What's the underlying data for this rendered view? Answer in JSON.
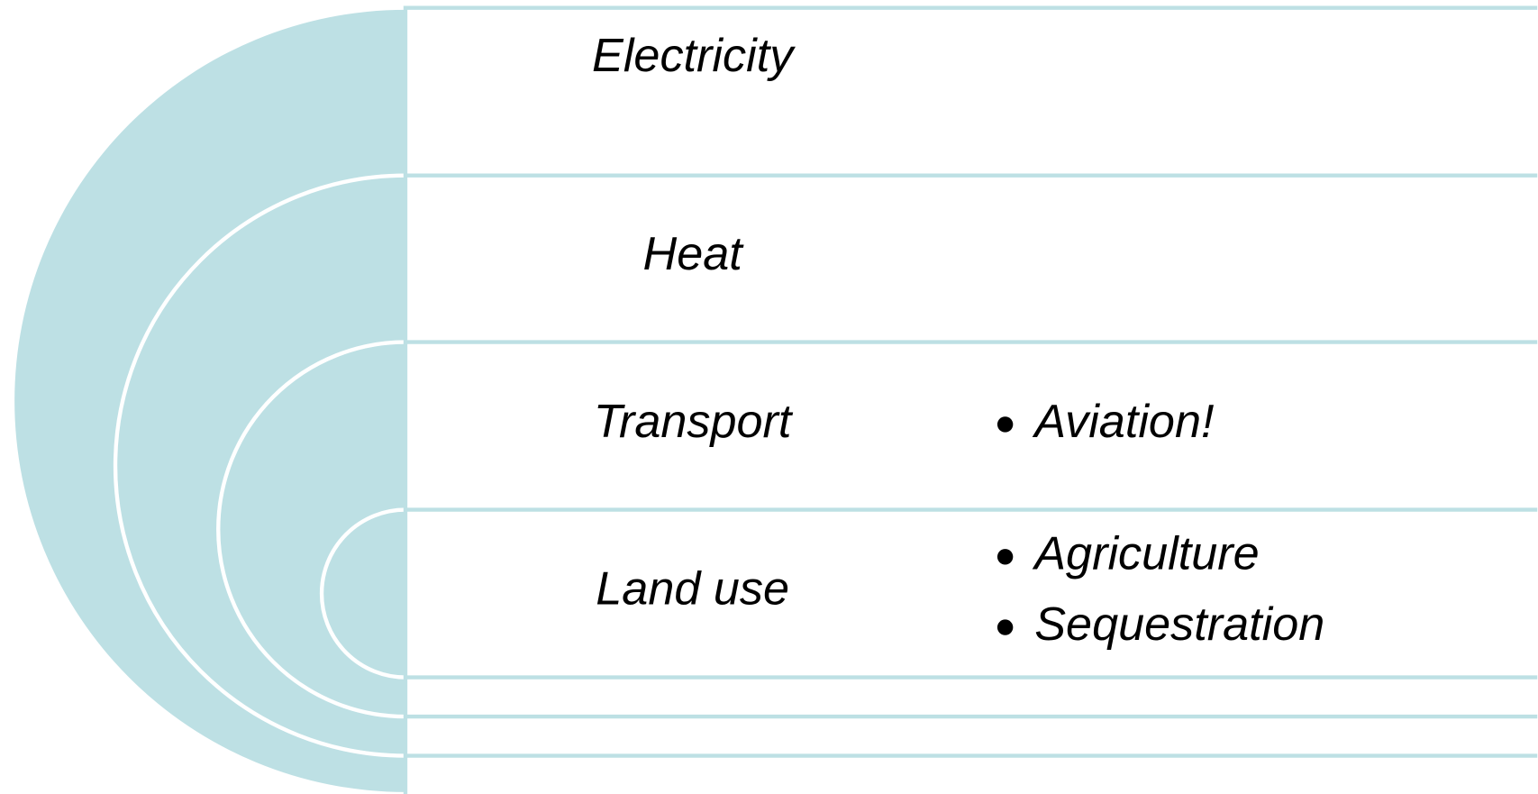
{
  "rows": [
    {
      "label": "Electricity",
      "bullets": []
    },
    {
      "label": "Heat",
      "bullets": []
    },
    {
      "label": "Transport",
      "bullets": [
        "Aviation!"
      ]
    },
    {
      "label": "Land use",
      "bullets": [
        "Agriculture",
        "Sequestration"
      ]
    }
  ]
}
